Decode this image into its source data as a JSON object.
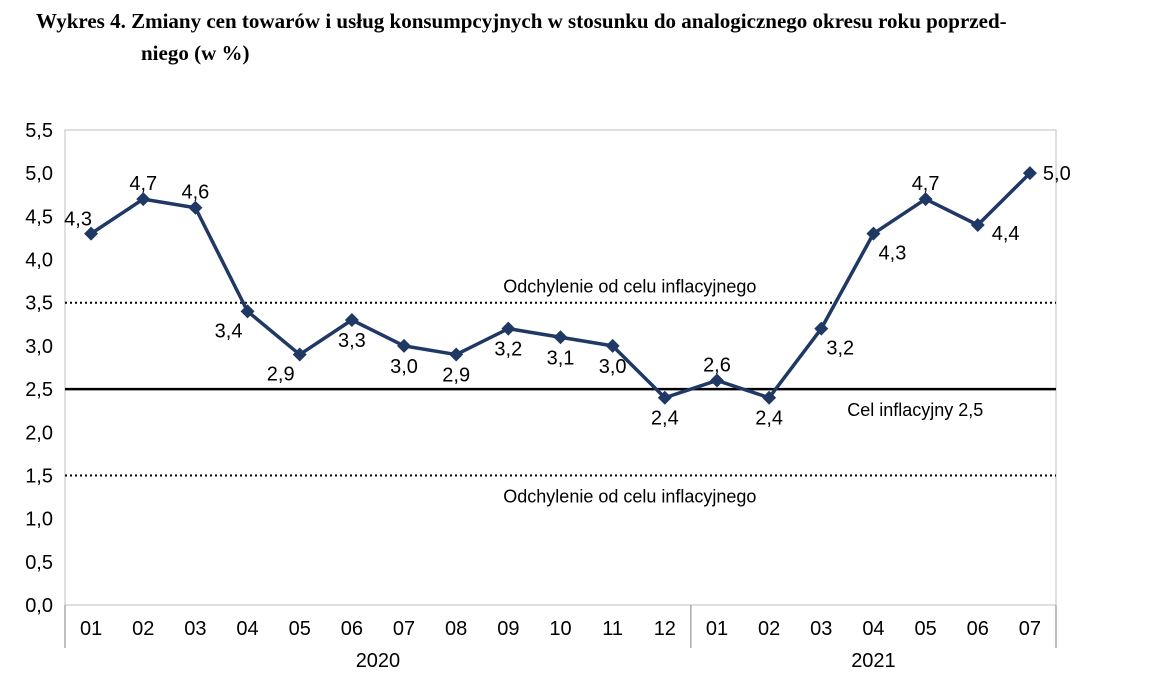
{
  "title": {
    "line1": "Wykres 4. Zmiany cen towarów i usług konsumpcyjnych w stosunku do analogicznego okresu roku poprzed-",
    "line2": "niego (w %)"
  },
  "chart_data": {
    "type": "line",
    "title": "Wykres 4. Zmiany cen towarów i usług konsumpcyjnych w stosunku do analogicznego okresu roku poprzedniego (w %)",
    "categories": [
      "01",
      "02",
      "03",
      "04",
      "05",
      "06",
      "07",
      "08",
      "09",
      "10",
      "11",
      "12",
      "01",
      "02",
      "03",
      "04",
      "05",
      "06",
      "07"
    ],
    "category_groups": [
      {
        "label": "2020",
        "count": 12
      },
      {
        "label": "2021",
        "count": 7
      }
    ],
    "series": [
      {
        "name": "Zmiany cen towarów i usług konsumpcyjnych (w %)",
        "values": [
          4.3,
          4.7,
          4.6,
          3.4,
          2.9,
          3.3,
          3.0,
          2.9,
          3.2,
          3.1,
          3.0,
          2.4,
          2.6,
          2.4,
          3.2,
          4.3,
          4.7,
          4.4,
          5.0
        ],
        "labels": [
          "4,3",
          "4,7",
          "4,6",
          "3,4",
          "2,9",
          "3,3",
          "3,0",
          "2,9",
          "3,2",
          "3,1",
          "3,0",
          "2,4",
          "2,6",
          "2,4",
          "3,2",
          "4,3",
          "4,7",
          "4,4",
          "5,0"
        ],
        "color": "#1F3864",
        "marker": "diamond"
      }
    ],
    "label_positions": [
      "above-left",
      "above",
      "above",
      "below-left",
      "below-left",
      "below",
      "below",
      "below",
      "below",
      "below",
      "below",
      "below",
      "above",
      "below",
      "below-right",
      "below-right",
      "above",
      "right-below",
      "right"
    ],
    "ylim": [
      0,
      5.5
    ],
    "ytick_step": 0.5,
    "ytick_labels": [
      "0,0",
      "0,5",
      "1,0",
      "1,5",
      "2,0",
      "2,5",
      "3,0",
      "3,5",
      "4,0",
      "4,5",
      "5,0",
      "5,5"
    ],
    "xlabel": "",
    "ylabel": "",
    "grid": false,
    "legend": "none",
    "reference_lines": [
      {
        "value": 2.5,
        "style": "solid",
        "color": "#000000",
        "label": "Cel inflacyjny 2,5",
        "label_position": "below",
        "label_x": 0.858
      },
      {
        "value": 3.5,
        "style": "dotted",
        "color": "#000000",
        "label": "Odchylenie od celu inflacyjnego",
        "label_position": "above",
        "label_x": 0.57
      },
      {
        "value": 1.5,
        "style": "dotted",
        "color": "#000000",
        "label": "Odchylenie od celu inflacyjnego",
        "label_position": "below",
        "label_x": 0.57
      }
    ]
  }
}
